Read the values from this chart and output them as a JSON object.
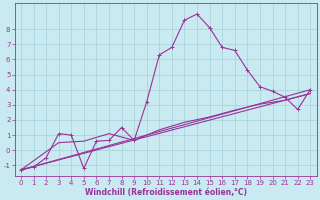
{
  "bg_color": "#c8eaf0",
  "grid_color": "#aad4dc",
  "line_color": "#993399",
  "markersize": 3,
  "linewidth": 0.8,
  "xlim": [
    -0.5,
    23.5
  ],
  "ylim": [
    -1.7,
    9.7
  ],
  "xticks": [
    0,
    1,
    2,
    3,
    4,
    5,
    6,
    7,
    8,
    9,
    10,
    11,
    12,
    13,
    14,
    15,
    16,
    17,
    18,
    19,
    20,
    21,
    22,
    23
  ],
  "yticks": [
    -1,
    0,
    1,
    2,
    3,
    4,
    5,
    6,
    7,
    8
  ],
  "xlabel": "Windchill (Refroidissement éolien,°C)",
  "xlabel_fontsize": 5.5,
  "tick_fontsize": 5,
  "main_line": [
    [
      0,
      -1.3
    ],
    [
      1,
      -1.1
    ],
    [
      2,
      -0.5
    ],
    [
      3,
      1.1
    ],
    [
      4,
      1.0
    ],
    [
      5,
      -1.2
    ],
    [
      6,
      0.6
    ],
    [
      7,
      0.65
    ],
    [
      8,
      1.5
    ],
    [
      9,
      0.65
    ],
    [
      10,
      3.2
    ],
    [
      11,
      6.3
    ],
    [
      12,
      6.8
    ],
    [
      13,
      8.6
    ],
    [
      14,
      9.0
    ],
    [
      15,
      8.1
    ],
    [
      16,
      6.8
    ],
    [
      17,
      6.6
    ],
    [
      18,
      5.3
    ],
    [
      19,
      4.2
    ],
    [
      20,
      3.9
    ],
    [
      21,
      3.5
    ],
    [
      22,
      2.7
    ],
    [
      23,
      4.0
    ]
  ],
  "line2": [
    [
      0,
      -1.3
    ],
    [
      3,
      0.5
    ],
    [
      5,
      0.6
    ],
    [
      7,
      1.1
    ],
    [
      9,
      0.65
    ],
    [
      11,
      1.35
    ],
    [
      13,
      1.85
    ],
    [
      15,
      2.2
    ],
    [
      17,
      2.65
    ],
    [
      19,
      3.05
    ],
    [
      21,
      3.3
    ],
    [
      23,
      3.75
    ]
  ],
  "line3": [
    [
      0,
      -1.3
    ],
    [
      23,
      3.75
    ]
  ],
  "line4": [
    [
      0,
      -1.3
    ],
    [
      23,
      4.0
    ]
  ]
}
